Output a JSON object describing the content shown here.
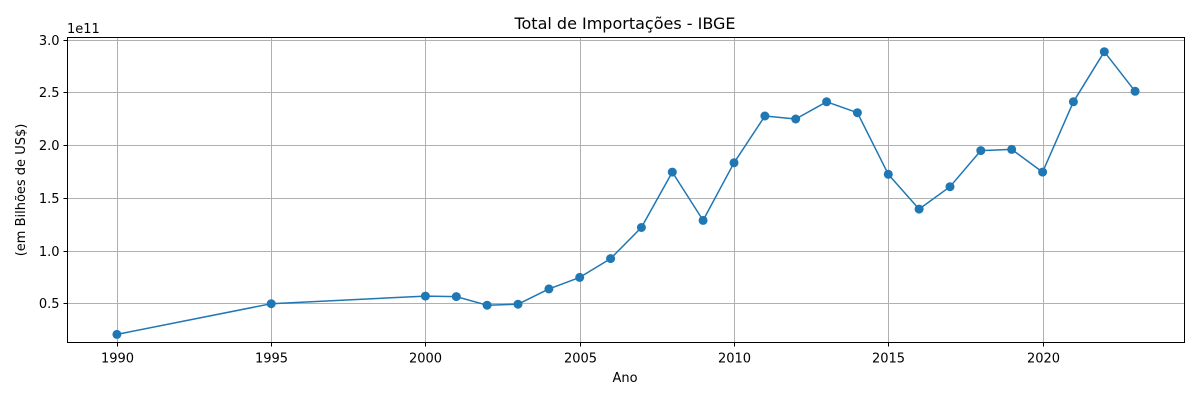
{
  "chart_data": {
    "type": "line",
    "title": "Total de Importações - IBGE",
    "xlabel": "Ano",
    "ylabel": "(em Bilhões de US$)",
    "offset_label": "1e11",
    "xlim": [
      1988.4,
      2024.6
    ],
    "ylim": [
      13000000000.0,
      302000000000.0
    ],
    "xticks": [
      1990,
      1995,
      2000,
      2005,
      2010,
      2015,
      2020
    ],
    "yticks": [
      50000000000.0,
      100000000000.0,
      150000000000.0,
      200000000000.0,
      250000000000.0,
      300000000000.0
    ],
    "ytick_labels": [
      "0.5",
      "1.0",
      "1.5",
      "2.0",
      "2.5",
      "3.0"
    ],
    "grid": true,
    "color": "#1f77b4",
    "series": [
      {
        "x": [
          1990,
          1995,
          2000,
          2001,
          2002,
          2003,
          2004,
          2005,
          2006,
          2007,
          2008,
          2009,
          2010,
          2011,
          2012,
          2013,
          2014,
          2015,
          2016,
          2017,
          2018,
          2019,
          2020,
          2021,
          2022,
          2023
        ],
        "values": [
          20700000000,
          49800000000,
          57000000000,
          56500000000,
          48300000000,
          49300000000,
          63800000000,
          74700000000,
          92500000000,
          122000000000,
          174500000000,
          128700000000,
          183300000000,
          227600000000,
          224800000000,
          241100000000,
          230700000000,
          172400000000,
          139400000000,
          160600000000,
          194800000000,
          196000000000,
          174500000000,
          241100000000,
          288500000000,
          251000000000
        ]
      }
    ]
  }
}
